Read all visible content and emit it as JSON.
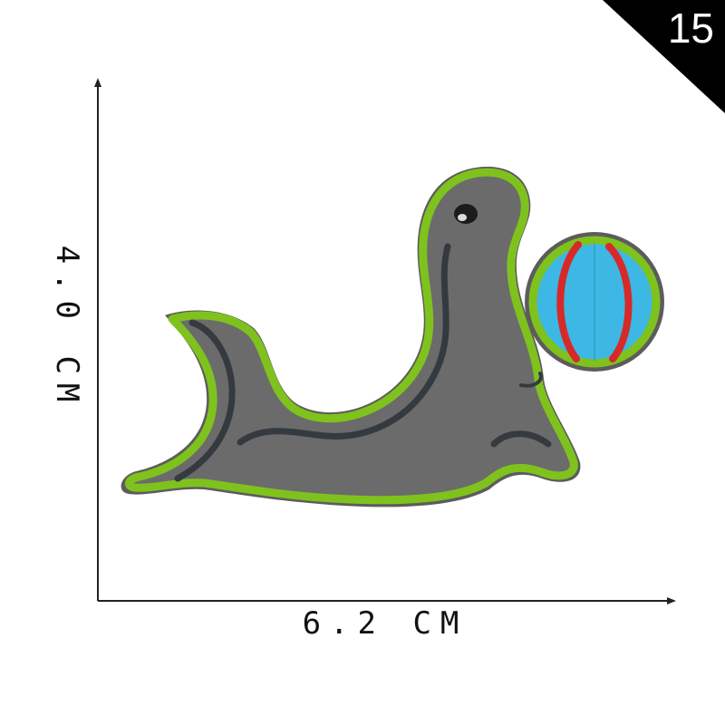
{
  "corner_badge": {
    "number": "15",
    "color": "#000000"
  },
  "dimensions": {
    "width_label": "6.2 CM",
    "height_label": "4.0 CM"
  },
  "patch": {
    "subject": "seal balancing a ball",
    "colors": {
      "body": "#6a6a6a",
      "border": "#7fc21d",
      "shadow_stripe": "#3a3f45",
      "ball_blue": "#3db7e3",
      "ball_red": "#d62a2a"
    }
  }
}
